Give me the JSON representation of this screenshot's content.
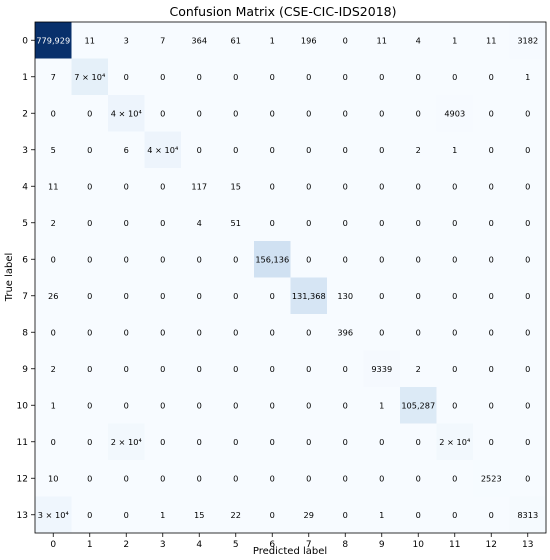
{
  "chart_data": {
    "type": "heatmap",
    "title": "Confusion Matrix (CSE-CIC-IDS2018)",
    "xlabel": "Predicted label",
    "ylabel": "True label",
    "x_categories": [
      "0",
      "1",
      "2",
      "3",
      "4",
      "5",
      "6",
      "7",
      "8",
      "9",
      "10",
      "11",
      "12",
      "13"
    ],
    "y_categories": [
      "0",
      "1",
      "2",
      "3",
      "4",
      "5",
      "6",
      "7",
      "8",
      "9",
      "10",
      "11",
      "12",
      "13"
    ],
    "colormap": "Blues",
    "colors": {
      "low": "#f7fbff",
      "high": "#08306b",
      "dark_text": "#ffffff",
      "light_text": "#000000"
    },
    "matrix": [
      [
        779929,
        11,
        3,
        7,
        364,
        61,
        1,
        196,
        0,
        11,
        4,
        1,
        11,
        3182
      ],
      [
        7,
        70000,
        0,
        0,
        0,
        0,
        0,
        0,
        0,
        0,
        0,
        0,
        0,
        1
      ],
      [
        0,
        0,
        40000,
        0,
        0,
        0,
        0,
        0,
        0,
        0,
        0,
        4903,
        0,
        0
      ],
      [
        5,
        0,
        6,
        40000,
        0,
        0,
        0,
        0,
        0,
        0,
        2,
        1,
        0,
        0
      ],
      [
        11,
        0,
        0,
        0,
        117,
        15,
        0,
        0,
        0,
        0,
        0,
        0,
        0,
        0
      ],
      [
        2,
        0,
        0,
        0,
        4,
        51,
        0,
        0,
        0,
        0,
        0,
        0,
        0,
        0
      ],
      [
        0,
        0,
        0,
        0,
        0,
        0,
        156136,
        0,
        0,
        0,
        0,
        0,
        0,
        0
      ],
      [
        26,
        0,
        0,
        0,
        0,
        0,
        0,
        131368,
        130,
        0,
        0,
        0,
        0,
        0
      ],
      [
        0,
        0,
        0,
        0,
        0,
        0,
        0,
        0,
        396,
        0,
        0,
        0,
        0,
        0
      ],
      [
        2,
        0,
        0,
        0,
        0,
        0,
        0,
        0,
        0,
        9339,
        2,
        0,
        0,
        0
      ],
      [
        1,
        0,
        0,
        0,
        0,
        0,
        0,
        0,
        0,
        1,
        105287,
        0,
        0,
        0
      ],
      [
        0,
        0,
        20000,
        0,
        0,
        0,
        0,
        0,
        0,
        0,
        0,
        20000,
        0,
        0
      ],
      [
        10,
        0,
        0,
        0,
        0,
        0,
        0,
        0,
        0,
        0,
        0,
        0,
        2523,
        0
      ],
      [
        30000,
        0,
        0,
        1,
        15,
        22,
        0,
        29,
        0,
        1,
        0,
        0,
        0,
        8313
      ]
    ],
    "cell_labels": [
      [
        "779,929",
        "11",
        "3",
        "7",
        "364",
        "61",
        "1",
        "196",
        "0",
        "11",
        "4",
        "1",
        "11",
        "3182"
      ],
      [
        "7",
        "7 × 10⁴",
        "0",
        "0",
        "0",
        "0",
        "0",
        "0",
        "0",
        "0",
        "0",
        "0",
        "0",
        "1"
      ],
      [
        "0",
        "0",
        "4 × 10⁴",
        "0",
        "0",
        "0",
        "0",
        "0",
        "0",
        "0",
        "0",
        "4903",
        "0",
        "0"
      ],
      [
        "5",
        "0",
        "6",
        "4 × 10⁴",
        "0",
        "0",
        "0",
        "0",
        "0",
        "0",
        "2",
        "1",
        "0",
        "0"
      ],
      [
        "11",
        "0",
        "0",
        "0",
        "117",
        "15",
        "0",
        "0",
        "0",
        "0",
        "0",
        "0",
        "0",
        "0"
      ],
      [
        "2",
        "0",
        "0",
        "0",
        "4",
        "51",
        "0",
        "0",
        "0",
        "0",
        "0",
        "0",
        "0",
        "0"
      ],
      [
        "0",
        "0",
        "0",
        "0",
        "0",
        "0",
        "156,136",
        "0",
        "0",
        "0",
        "0",
        "0",
        "0",
        "0"
      ],
      [
        "26",
        "0",
        "0",
        "0",
        "0",
        "0",
        "0",
        "131,368",
        "130",
        "0",
        "0",
        "0",
        "0",
        "0"
      ],
      [
        "0",
        "0",
        "0",
        "0",
        "0",
        "0",
        "0",
        "0",
        "396",
        "0",
        "0",
        "0",
        "0",
        "0"
      ],
      [
        "2",
        "0",
        "0",
        "0",
        "0",
        "0",
        "0",
        "0",
        "0",
        "9339",
        "2",
        "0",
        "0",
        "0"
      ],
      [
        "1",
        "0",
        "0",
        "0",
        "0",
        "0",
        "0",
        "0",
        "0",
        "1",
        "105,287",
        "0",
        "0",
        "0"
      ],
      [
        "0",
        "0",
        "2 × 10⁴",
        "0",
        "0",
        "0",
        "0",
        "0",
        "0",
        "0",
        "0",
        "2 × 10⁴",
        "0",
        "0"
      ],
      [
        "10",
        "0",
        "0",
        "0",
        "0",
        "0",
        "0",
        "0",
        "0",
        "0",
        "0",
        "0",
        "2523",
        "0"
      ],
      [
        "3 × 10⁴",
        "0",
        "0",
        "1",
        "15",
        "22",
        "0",
        "29",
        "0",
        "1",
        "0",
        "0",
        "0",
        "8313"
      ]
    ]
  }
}
